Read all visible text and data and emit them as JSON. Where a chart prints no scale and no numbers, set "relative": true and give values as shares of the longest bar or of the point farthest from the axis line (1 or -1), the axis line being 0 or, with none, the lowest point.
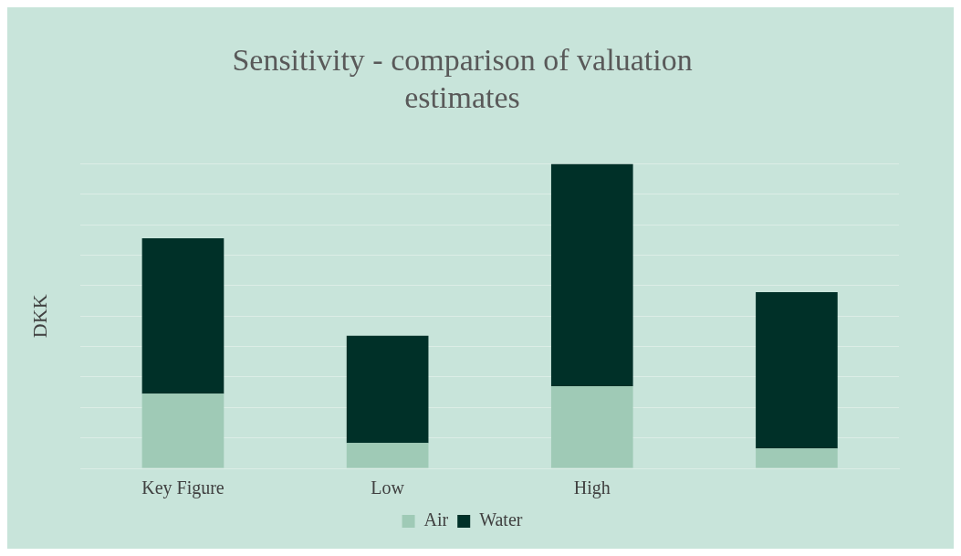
{
  "chart_data": {
    "type": "bar",
    "title": "Sensitivity - comparison of valuation estimates",
    "ylabel": "DKK",
    "categories": [
      "Key Figure",
      "Low",
      "High",
      null
    ],
    "stacked": true,
    "relative": true,
    "grid": "y",
    "legend": "bottom",
    "series": [
      {
        "name": "Air",
        "color": "#9fcab6",
        "values": [
          0.245,
          0.083,
          0.27,
          0.065
        ]
      },
      {
        "name": "Water",
        "color": "#003028",
        "values": [
          0.511,
          0.353,
          0.73,
          0.514
        ]
      }
    ]
  }
}
